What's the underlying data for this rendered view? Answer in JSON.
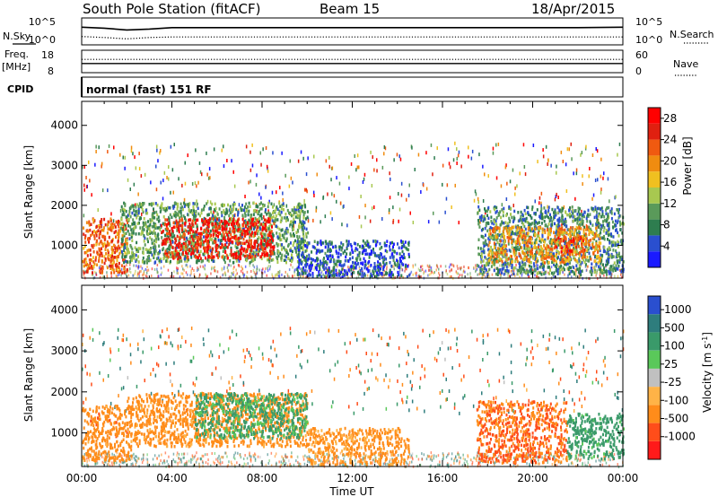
{
  "header": {
    "station": "South Pole Station (fitACF)",
    "beam": "Beam 15",
    "date": "18/Apr/2015"
  },
  "left_labels": {
    "nsky": "N.Sky",
    "freq": "Freq.",
    "mhz": "[MHz]",
    "cpid": "CPID"
  },
  "right_labels": {
    "nsearch": "N.Search",
    "nave": "Nave"
  },
  "cpid_text": "normal (fast) 151 RF",
  "x_axis": {
    "label": "Time UT",
    "ticks": [
      "00:00",
      "04:00",
      "08:00",
      "12:00",
      "16:00",
      "20:00",
      "00:00"
    ]
  },
  "colors": {
    "power": [
      "#1a1aff",
      "#2a4fcf",
      "#2e7d4f",
      "#5a9a5a",
      "#a8c850",
      "#f0c020",
      "#f08c10",
      "#f05a10",
      "#e02010",
      "#ff0000"
    ],
    "velocity": [
      "#ff1a1a",
      "#ff4d1a",
      "#ff8c1a",
      "#ffb347",
      "#c0c0c0",
      "#5ac85a",
      "#3a9a6a",
      "#2e7d7d",
      "#2a4fcf"
    ]
  },
  "chart_data": [
    {
      "type": "line",
      "name": "noise-panel",
      "ylabel": "N.Sky",
      "y_ticks": [
        "10^5",
        "10^0"
      ],
      "y_ticks_right": [
        "10^5",
        "10^0"
      ],
      "series": [
        {
          "name": "N.Sky",
          "x": [
            0,
            1,
            2,
            3,
            4,
            6,
            8,
            10,
            12,
            14,
            16,
            18,
            20,
            22,
            24
          ],
          "y": [
            3.4,
            3.2,
            2.8,
            3.0,
            3.3,
            3.3,
            3.3,
            3.3,
            3.3,
            3.3,
            3.3,
            3.3,
            3.3,
            3.3,
            3.4
          ]
        },
        {
          "name": "N.Search",
          "x": [
            0,
            1,
            2,
            3,
            4,
            6,
            8,
            10,
            12,
            14,
            16,
            18,
            20,
            22,
            24
          ],
          "y": [
            1.4,
            1.2,
            0.9,
            1.2,
            1.3,
            1.3,
            1.3,
            1.3,
            1.3,
            1.3,
            1.3,
            1.3,
            1.3,
            1.3,
            1.3
          ]
        }
      ]
    },
    {
      "type": "line",
      "name": "frequency-panel",
      "ylabel": "Freq. [MHz]",
      "y_ticks_left": [
        "18",
        "8"
      ],
      "y_ticks_right": [
        "60",
        "0"
      ],
      "ylim_left": [
        8,
        18
      ],
      "ylim_right": [
        0,
        60
      ],
      "series": [
        {
          "name": "Freq",
          "x": [
            0,
            24
          ],
          "y": [
            12,
            12
          ]
        },
        {
          "name": "Nave",
          "x": [
            0,
            24
          ],
          "y": [
            36,
            36
          ]
        }
      ]
    },
    {
      "type": "heatmap",
      "name": "power-panel",
      "ylabel": "Slant Range [km]",
      "xlabel": "Time UT",
      "xlim": [
        0,
        24
      ],
      "ylim": [
        180,
        4600
      ],
      "y_ticks": [
        1000,
        2000,
        3000,
        4000
      ],
      "colorbar": {
        "label": "Power [dB]",
        "ticks": [
          4,
          8,
          12,
          16,
          20,
          24,
          28
        ],
        "range": [
          0,
          30
        ]
      },
      "regions": [
        {
          "t0": 0.0,
          "t1": 2.0,
          "r0": 350,
          "r1": 1700,
          "value": 22
        },
        {
          "t0": 1.7,
          "t1": 10.0,
          "r0": 600,
          "r1": 2100,
          "value": 10
        },
        {
          "t0": 3.5,
          "t1": 8.5,
          "r0": 700,
          "r1": 1700,
          "value": 26
        },
        {
          "t0": 9.5,
          "t1": 14.5,
          "r0": 250,
          "r1": 1150,
          "value": 5
        },
        {
          "t0": 17.5,
          "t1": 24.0,
          "r0": 300,
          "r1": 2000,
          "value": 8
        },
        {
          "t0": 18.0,
          "t1": 23.0,
          "r0": 600,
          "r1": 1500,
          "value": 19
        },
        {
          "t0": 21.0,
          "t1": 22.3,
          "r0": 850,
          "r1": 1250,
          "value": 25
        }
      ]
    },
    {
      "type": "heatmap",
      "name": "velocity-panel",
      "ylabel": "Slant Range [km]",
      "xlabel": "Time UT",
      "xlim": [
        0,
        24
      ],
      "ylim": [
        180,
        4600
      ],
      "y_ticks": [
        1000,
        2000,
        3000,
        4000
      ],
      "colorbar": {
        "label": "Velocity [m s^-1]",
        "ticks": [
          1000,
          500,
          100,
          25,
          -25,
          -100,
          -500,
          -1000
        ]
      },
      "regions": [
        {
          "t0": 0.0,
          "t1": 2.2,
          "r0": 350,
          "r1": 1700,
          "value": -300
        },
        {
          "t0": 2.0,
          "t1": 10.0,
          "r0": 700,
          "r1": 2000,
          "value": -200
        },
        {
          "t0": 5.0,
          "t1": 10.0,
          "r0": 900,
          "r1": 2000,
          "value": 150
        },
        {
          "t0": 10.0,
          "t1": 14.5,
          "r0": 250,
          "r1": 1150,
          "value": -150
        },
        {
          "t0": 17.5,
          "t1": 21.5,
          "r0": 300,
          "r1": 1800,
          "value": -500
        },
        {
          "t0": 21.5,
          "t1": 24.0,
          "r0": 400,
          "r1": 1500,
          "value": 200
        }
      ]
    }
  ]
}
